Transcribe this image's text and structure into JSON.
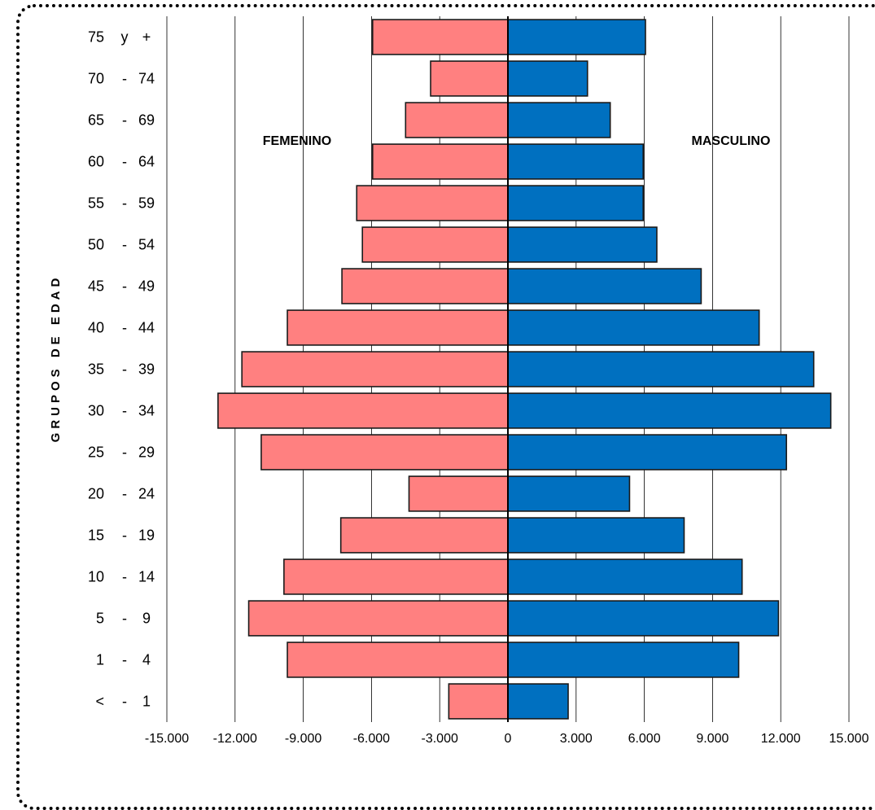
{
  "chart_data": {
    "type": "bar",
    "orientation": "horizontal",
    "ylabel": "GRUPOS DE EDAD",
    "xlabel": "",
    "xlim": [
      -15000,
      15000
    ],
    "xticks": [
      -15000,
      -12000,
      -9000,
      -6000,
      -3000,
      0,
      3000,
      6000,
      9000,
      12000,
      15000
    ],
    "xtick_labels": [
      "-15.000",
      "-12.000",
      "-9.000",
      "-6.000",
      "-3.000",
      "0",
      "3.000",
      "6.000",
      "9.000",
      "12.000",
      "15.000"
    ],
    "grid": "vertical",
    "categories": [
      "75 y +",
      "70 - 74",
      "65 - 69",
      "60 - 64",
      "55 - 59",
      "50 - 54",
      "45 - 49",
      "40 - 44",
      "35 - 39",
      "30 - 34",
      "25 - 29",
      "20 - 24",
      "15 - 19",
      "10 - 14",
      "5 - 9",
      "1 - 4",
      "< - 1"
    ],
    "category_labels": [
      [
        "75",
        "y",
        "+"
      ],
      [
        "70",
        "-",
        "74"
      ],
      [
        "65",
        "-",
        "69"
      ],
      [
        "60",
        "-",
        "64"
      ],
      [
        "55",
        "-",
        "59"
      ],
      [
        "50",
        "-",
        "54"
      ],
      [
        "45",
        "-",
        "49"
      ],
      [
        "40",
        "-",
        "44"
      ],
      [
        "35",
        "-",
        "39"
      ],
      [
        "30",
        "-",
        "34"
      ],
      [
        "25",
        "-",
        "29"
      ],
      [
        "20",
        "-",
        "24"
      ],
      [
        "15",
        "-",
        "19"
      ],
      [
        "10",
        "-",
        "14"
      ],
      [
        "5",
        "-",
        "9"
      ],
      [
        "1",
        "-",
        "4"
      ],
      [
        "<",
        "-",
        "1"
      ]
    ],
    "series": [
      {
        "name": "FEMENINO",
        "color": "#ff8080",
        "values": [
          -5950,
          -3400,
          -4500,
          -5950,
          -6650,
          -6400,
          -7300,
          -9700,
          -11700,
          -12750,
          -10850,
          -4350,
          -7350,
          -9850,
          -11400,
          -9700,
          -2600
        ]
      },
      {
        "name": "MASCULINO",
        "color": "#0070c0",
        "values": [
          6050,
          3500,
          4500,
          5950,
          5950,
          6550,
          8500,
          11050,
          13450,
          14200,
          12250,
          5350,
          7750,
          10300,
          11900,
          10150,
          2650
        ]
      }
    ],
    "annotations": [
      "FEMENINO",
      "MASCULINO"
    ]
  }
}
